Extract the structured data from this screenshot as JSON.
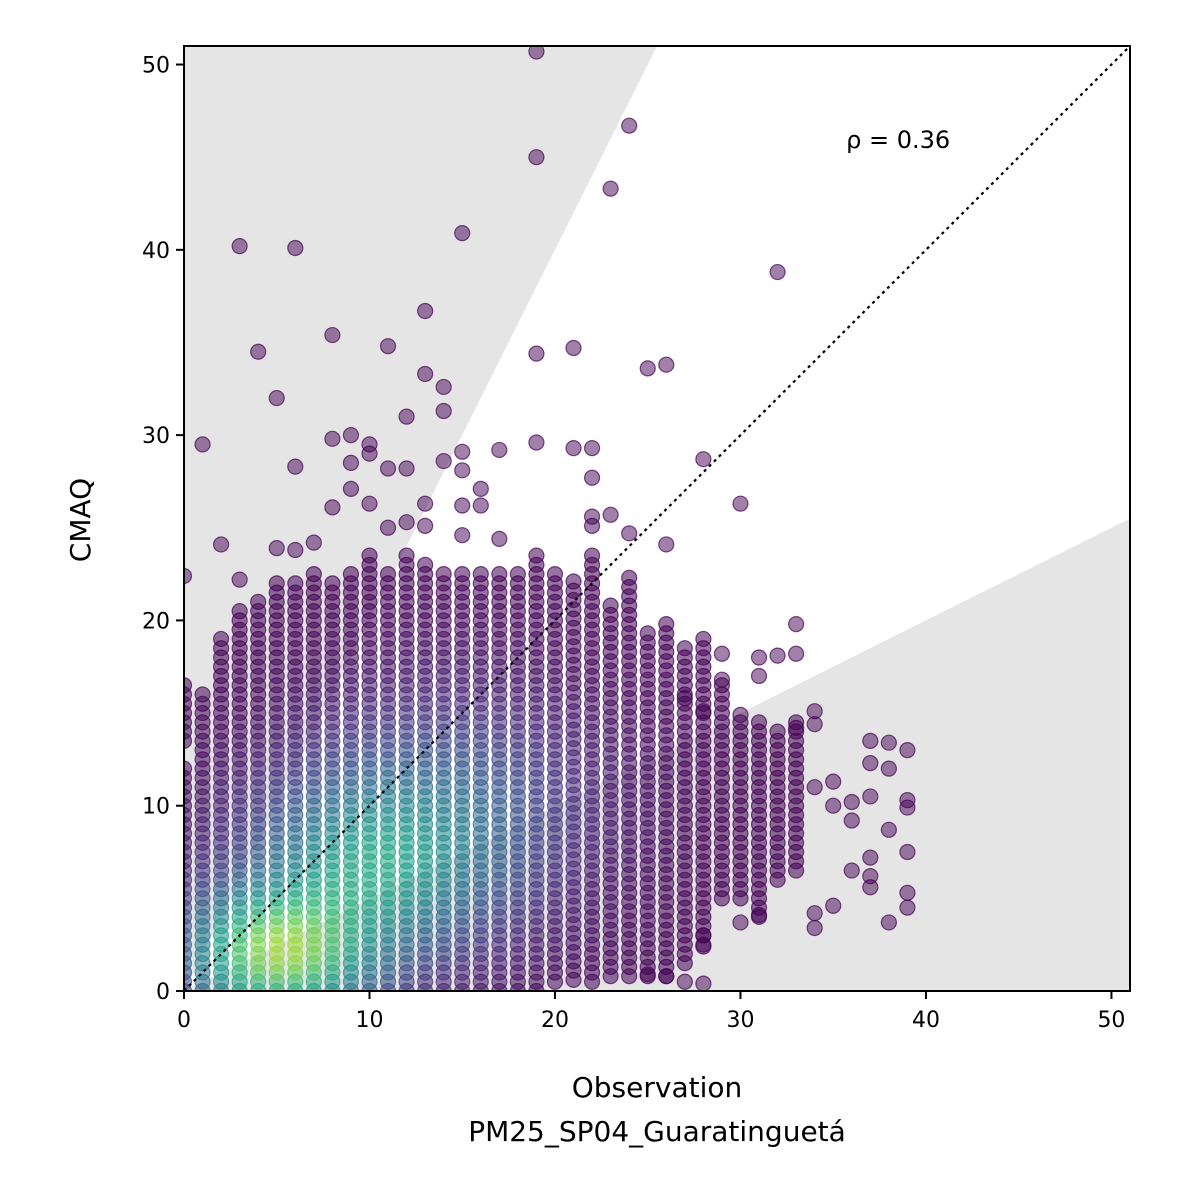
{
  "chart_data": {
    "type": "scatter",
    "title": "",
    "xlabel": "Observation",
    "xlabel_sub": "PM25_SP04_Guaratinguetá",
    "ylabel": "CMAQ",
    "xlim": [
      0,
      51
    ],
    "ylim": [
      0,
      51
    ],
    "x_ticks": [
      0,
      10,
      20,
      30,
      40,
      50
    ],
    "y_ticks": [
      0,
      10,
      20,
      30,
      40,
      50
    ],
    "x_tick_labels": [
      "0",
      "10",
      "20",
      "30",
      "40",
      "50"
    ],
    "y_tick_labels": [
      "0",
      "10",
      "20",
      "30",
      "40",
      "50"
    ],
    "annotation": "ρ = 0.36",
    "annotation_position": {
      "x": 38.5,
      "y": 45.5
    },
    "reference_line": {
      "type": "1:1",
      "style": "dotted",
      "color": "#000000"
    },
    "shaded_regions": [
      {
        "description": "above 2:1 line",
        "slope": 2,
        "side": "above",
        "color": "#e5e5e5"
      },
      {
        "description": "below 1:2 line",
        "slope": 0.5,
        "side": "below",
        "color": "#e5e5e5"
      }
    ],
    "colormap": "viridis (point density)",
    "grid": false,
    "legend": "none",
    "outlier_points": [
      [
        19,
        50.7
      ],
      [
        24,
        46.7
      ],
      [
        19,
        45
      ],
      [
        23,
        43.3
      ],
      [
        3,
        40.2
      ],
      [
        6,
        40.1
      ],
      [
        15,
        40.9
      ],
      [
        32,
        38.8
      ],
      [
        13,
        36.7
      ],
      [
        8,
        35.4
      ],
      [
        4,
        34.5
      ],
      [
        11,
        34.8
      ],
      [
        19,
        34.4
      ],
      [
        21,
        34.7
      ],
      [
        25,
        33.6
      ],
      [
        26,
        33.8
      ],
      [
        13,
        33.3
      ],
      [
        14,
        32.6
      ],
      [
        5,
        32
      ],
      [
        14,
        31.3
      ],
      [
        12,
        31
      ],
      [
        1,
        29.5
      ],
      [
        8,
        29.8
      ],
      [
        9,
        30
      ],
      [
        10,
        29.5
      ],
      [
        10,
        29
      ],
      [
        15,
        29.1
      ],
      [
        17,
        29.2
      ],
      [
        19,
        29.6
      ],
      [
        21,
        29.3
      ],
      [
        22,
        29.3
      ],
      [
        28,
        28.7
      ],
      [
        6,
        28.3
      ],
      [
        9,
        28.5
      ],
      [
        11,
        28.2
      ],
      [
        12,
        28.2
      ],
      [
        14,
        28.6
      ],
      [
        15,
        28.1
      ],
      [
        16,
        27.1
      ],
      [
        22,
        27.7
      ],
      [
        9,
        27.1
      ],
      [
        8,
        26.1
      ],
      [
        10,
        26.3
      ],
      [
        13,
        26.3
      ],
      [
        15,
        26.2
      ],
      [
        16,
        26.2
      ],
      [
        23,
        25.7
      ],
      [
        30,
        26.3
      ],
      [
        22,
        25.6
      ],
      [
        22,
        25.1
      ],
      [
        11,
        25
      ],
      [
        12,
        25.3
      ],
      [
        13,
        25.1
      ],
      [
        24,
        24.7
      ],
      [
        26,
        24.1
      ],
      [
        2,
        24.1
      ],
      [
        5,
        23.9
      ],
      [
        6,
        23.8
      ],
      [
        7,
        24.2
      ],
      [
        15,
        24.6
      ],
      [
        17,
        24.4
      ],
      [
        0,
        22.4
      ],
      [
        3,
        22.2
      ],
      [
        33,
        19.8
      ],
      [
        33,
        18.2
      ],
      [
        31,
        18
      ],
      [
        32,
        18.1
      ],
      [
        29,
        18.2
      ],
      [
        31,
        17
      ],
      [
        29,
        16.8
      ],
      [
        27,
        15.8
      ],
      [
        28,
        15.1
      ],
      [
        30,
        14.9
      ],
      [
        34,
        15.1
      ],
      [
        34,
        14.4
      ],
      [
        33,
        14.2
      ],
      [
        37,
        13.5
      ],
      [
        38,
        13.4
      ],
      [
        39,
        13
      ],
      [
        37,
        12.3
      ],
      [
        38,
        12
      ],
      [
        35,
        11.3
      ],
      [
        34,
        11
      ],
      [
        37,
        10.5
      ],
      [
        39,
        10.3
      ],
      [
        39,
        9.9
      ],
      [
        36,
        10.2
      ],
      [
        35,
        10
      ],
      [
        36,
        9.2
      ],
      [
        38,
        8.7
      ],
      [
        39,
        7.5
      ],
      [
        37,
        7.2
      ],
      [
        36,
        6.5
      ],
      [
        37,
        6.2
      ],
      [
        37,
        5.6
      ],
      [
        39,
        5.3
      ],
      [
        35,
        4.6
      ],
      [
        39,
        4.5
      ],
      [
        34,
        4.2
      ],
      [
        38,
        3.7
      ],
      [
        34,
        3.4
      ],
      [
        31,
        4.1
      ],
      [
        30,
        3.7
      ],
      [
        28,
        3
      ],
      [
        28,
        2.4
      ],
      [
        27,
        0.5
      ],
      [
        28,
        0.4
      ],
      [
        26,
        0.8
      ],
      [
        25,
        0.9
      ]
    ],
    "column_ranges": [
      [
        0,
        0,
        12.4
      ],
      [
        0,
        13.5,
        16.8
      ],
      [
        1,
        0,
        16.2
      ],
      [
        2,
        0,
        19.2
      ],
      [
        3,
        0,
        20.6
      ],
      [
        4,
        0,
        21
      ],
      [
        5,
        0,
        22.3
      ],
      [
        6,
        0,
        22
      ],
      [
        7,
        0,
        22.5
      ],
      [
        8,
        0,
        22
      ],
      [
        9,
        0,
        22.8
      ],
      [
        10,
        0,
        23.5
      ],
      [
        11,
        0,
        22.5
      ],
      [
        12,
        0,
        23.5
      ],
      [
        13,
        0,
        23.2
      ],
      [
        14,
        0,
        22.8
      ],
      [
        15,
        0,
        22.5
      ],
      [
        16,
        0,
        22.5
      ],
      [
        17,
        0,
        22.8
      ],
      [
        18,
        0,
        22.5
      ],
      [
        19,
        0,
        23.5
      ],
      [
        20,
        0.5,
        22.8
      ],
      [
        21,
        0.6,
        22.5
      ],
      [
        22,
        0.5,
        23.8
      ],
      [
        23,
        0.8,
        20.8
      ],
      [
        24,
        0.8,
        22.5
      ],
      [
        25,
        0.8,
        19.5
      ],
      [
        26,
        0.8,
        19.8
      ],
      [
        27,
        1.5,
        18.8
      ],
      [
        28,
        2.5,
        19.2
      ],
      [
        29,
        5,
        16.8
      ],
      [
        30,
        5,
        14.8
      ],
      [
        31,
        4,
        14.5
      ],
      [
        32,
        6,
        14
      ],
      [
        33,
        6.5,
        14.5
      ]
    ]
  }
}
